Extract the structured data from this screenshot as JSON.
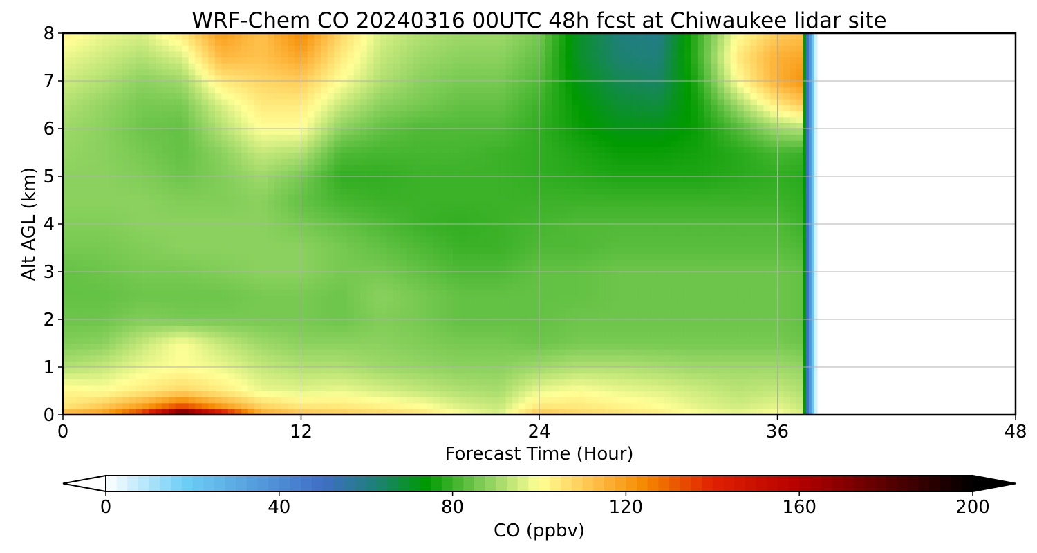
{
  "chart_data": {
    "type": "heatmap",
    "title": "WRF-Chem CO  20240316 00UTC 48h fcst at Chiwaukee lidar site",
    "xlabel": "Forecast Time (Hour)",
    "ylabel": "Alt AGL (km)",
    "xlim": [
      0,
      48
    ],
    "ylim": [
      0,
      8
    ],
    "x_ticks": [
      "0",
      "12",
      "24",
      "36",
      "48"
    ],
    "y_ticks": [
      "0",
      "1",
      "2",
      "3",
      "4",
      "5",
      "6",
      "7",
      "8"
    ],
    "grid": true,
    "data_end_hour": 38,
    "x_hours": [
      0,
      2,
      4,
      6,
      8,
      10,
      12,
      14,
      16,
      18,
      20,
      22,
      24,
      26,
      28,
      30,
      32,
      34,
      36,
      37.3
    ],
    "z_km": [
      0,
      0.2,
      0.5,
      1,
      1.5,
      2,
      2.5,
      3,
      3.5,
      4,
      4.5,
      5,
      5.5,
      6,
      6.5,
      7,
      7.5,
      8
    ],
    "co_ppbv": [
      [
        116,
        120,
        140,
        190,
        150,
        118,
        112,
        110,
        108,
        106,
        100,
        96,
        112,
        108,
        106,
        104,
        100,
        98,
        100,
        96
      ],
      [
        104,
        110,
        118,
        130,
        118,
        108,
        104,
        104,
        102,
        100,
        96,
        94,
        104,
        104,
        102,
        100,
        97,
        95,
        97,
        94
      ],
      [
        102,
        100,
        104,
        108,
        104,
        98,
        97,
        98,
        96,
        94,
        92,
        91,
        98,
        100,
        98,
        97,
        95,
        93,
        94,
        92
      ],
      [
        92,
        94,
        98,
        100,
        98,
        94,
        92,
        92,
        90,
        89,
        88,
        88,
        90,
        92,
        92,
        91,
        90,
        90,
        90,
        89
      ],
      [
        87,
        88,
        94,
        100,
        94,
        90,
        88,
        88,
        88,
        87,
        86,
        86,
        85,
        86,
        86,
        86,
        86,
        86,
        86,
        85
      ],
      [
        85,
        85,
        87,
        86,
        86,
        86,
        86,
        85,
        87,
        86,
        84,
        84,
        84,
        85,
        85,
        85,
        85,
        85,
        85,
        84
      ],
      [
        84,
        84,
        85,
        85,
        85,
        86,
        86,
        85,
        88,
        86,
        84,
        84,
        84,
        84,
        85,
        85,
        85,
        85,
        85,
        84
      ],
      [
        84,
        85,
        86,
        86,
        87,
        88,
        88,
        86,
        86,
        84,
        82,
        82,
        84,
        84,
        85,
        85,
        85,
        85,
        85,
        84
      ],
      [
        86,
        86,
        87,
        88,
        88,
        88,
        88,
        86,
        84,
        82,
        80,
        80,
        82,
        82,
        83,
        83,
        83,
        83,
        83,
        82
      ],
      [
        87,
        87,
        88,
        88,
        88,
        88,
        86,
        84,
        82,
        80,
        79,
        80,
        81,
        82,
        82,
        82,
        82,
        82,
        82,
        80
      ],
      [
        88,
        88,
        88,
        87,
        87,
        88,
        84,
        81,
        80,
        80,
        80,
        80,
        80,
        80,
        80,
        80,
        80,
        80,
        80,
        79
      ],
      [
        88,
        88,
        87,
        85,
        87,
        90,
        86,
        79,
        79,
        80,
        80,
        80,
        79,
        78,
        77,
        77,
        77,
        78,
        79,
        78
      ],
      [
        89,
        88,
        86,
        84,
        88,
        94,
        92,
        82,
        81,
        81,
        81,
        80,
        79,
        77,
        75,
        75,
        76,
        78,
        81,
        80
      ],
      [
        90,
        88,
        85,
        84,
        92,
        100,
        100,
        88,
        84,
        82,
        82,
        82,
        79,
        75,
        72,
        72,
        75,
        82,
        90,
        92
      ],
      [
        92,
        89,
        86,
        86,
        96,
        104,
        104,
        94,
        88,
        86,
        84,
        84,
        80,
        74,
        69,
        68,
        76,
        90,
        104,
        110
      ],
      [
        95,
        92,
        88,
        90,
        104,
        108,
        110,
        100,
        92,
        88,
        86,
        86,
        82,
        72,
        66,
        64,
        78,
        100,
        116,
        122
      ],
      [
        98,
        95,
        92,
        96,
        114,
        112,
        118,
        104,
        94,
        90,
        88,
        88,
        84,
        70,
        63,
        62,
        80,
        104,
        116,
        118
      ],
      [
        102,
        98,
        96,
        104,
        120,
        112,
        124,
        108,
        96,
        92,
        90,
        90,
        86,
        70,
        62,
        60,
        80,
        100,
        110,
        112
      ]
    ],
    "colorbar": {
      "label": "CO  (ppbv)",
      "range": [
        0,
        200
      ],
      "ticks": [
        "0",
        "40",
        "80",
        "120",
        "160",
        "200"
      ],
      "extend": "both",
      "colormap_stops": [
        {
          "v": 0,
          "color": "#ffffff"
        },
        {
          "v": 18,
          "color": "#6dcff6"
        },
        {
          "v": 50,
          "color": "#3f6ec6"
        },
        {
          "v": 62,
          "color": "#1f7f7a"
        },
        {
          "v": 74,
          "color": "#009a00"
        },
        {
          "v": 88,
          "color": "#8bd15f"
        },
        {
          "v": 100,
          "color": "#ffff96"
        },
        {
          "v": 112,
          "color": "#ffc24d"
        },
        {
          "v": 124,
          "color": "#f58a00"
        },
        {
          "v": 140,
          "color": "#e02000"
        },
        {
          "v": 160,
          "color": "#b50000"
        },
        {
          "v": 180,
          "color": "#5a0000"
        },
        {
          "v": 200,
          "color": "#000000"
        }
      ]
    }
  }
}
